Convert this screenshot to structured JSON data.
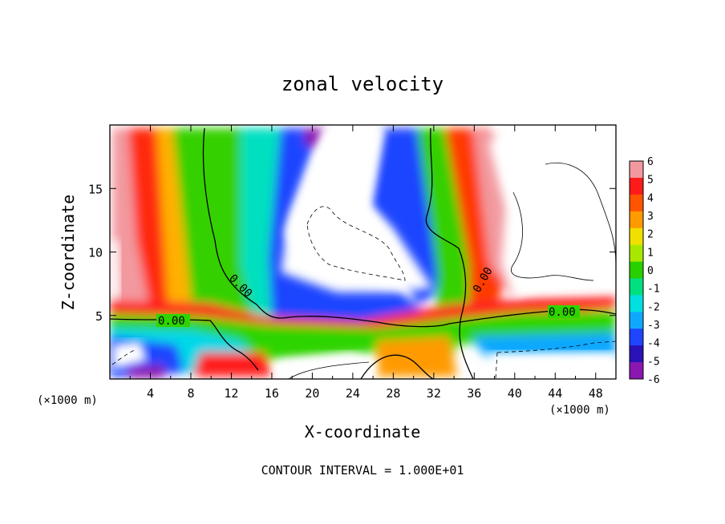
{
  "chart_data": {
    "type": "heatmap",
    "title": "zonal velocity",
    "xlabel": "X-coordinate",
    "ylabel": "Z-coordinate",
    "x_unit_left": "(×1000 m)",
    "x_unit_right": "(×1000 m)",
    "footer": "CONTOUR INTERVAL = 1.000E+01",
    "xlim": [
      0,
      50
    ],
    "ylim": [
      0,
      20
    ],
    "x_ticks": [
      "4",
      "8",
      "12",
      "16",
      "20",
      "24",
      "28",
      "32",
      "36",
      "40",
      "44",
      "48"
    ],
    "y_ticks": [
      "5",
      "10",
      "15"
    ],
    "contour_labels": [
      "0.00",
      "0.00",
      "0.00",
      "0.00"
    ],
    "colorbar": {
      "labels": [
        "6",
        "5",
        "4",
        "3",
        "2",
        "1",
        "0",
        "-1",
        "-2",
        "-3",
        "-4",
        "-5",
        "-6"
      ],
      "colors": [
        "#f2999f",
        "#ff1a1a",
        "#ff5500",
        "#ff9a00",
        "#f0e000",
        "#a8e800",
        "#28d000",
        "#00e080",
        "#00e0e0",
        "#10a8ff",
        "#1f45ff",
        "#2a12b8",
        "#8a18b0"
      ]
    },
    "annotations": {
      "zero_contour_label": "0.00"
    }
  }
}
